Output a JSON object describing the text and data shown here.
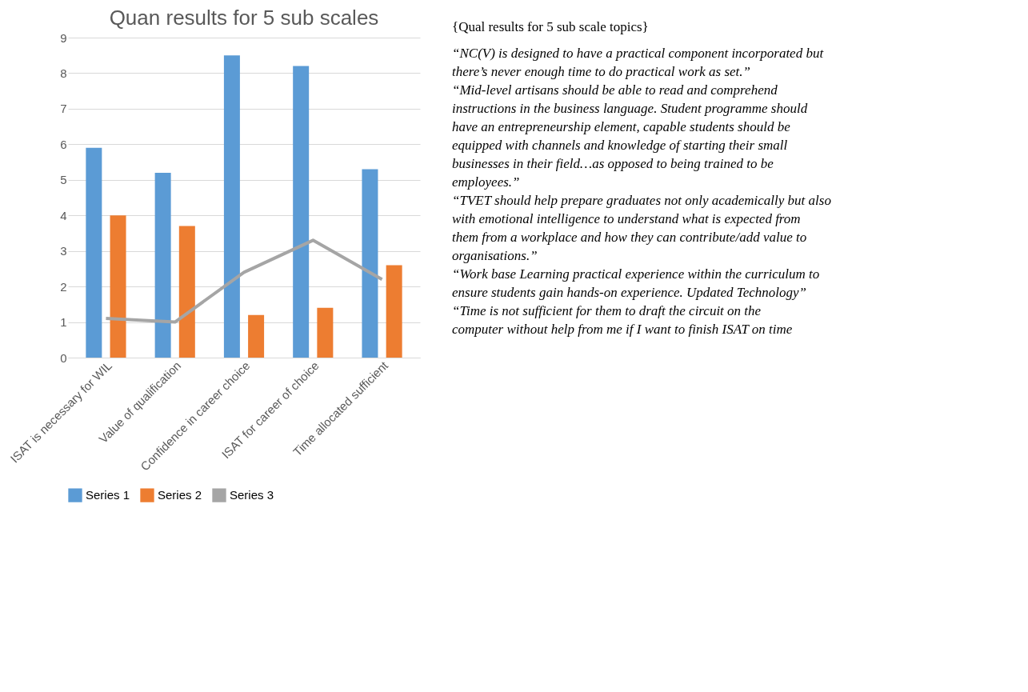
{
  "chart_data": [
    {
      "type": "bar",
      "title": "Quan results for 5 sub scales",
      "categories": [
        "ISAT is necessary for WIL",
        "Value of qualification",
        "Confidence in career choice",
        "ISAT for career of choice",
        "Time allocated sufficient"
      ],
      "series": [
        {
          "name": "Series 1",
          "color": "#5b9bd5",
          "values": [
            5.9,
            5.2,
            8.5,
            8.2,
            5.3
          ]
        },
        {
          "name": "Series 2",
          "color": "#ed7d31",
          "values": [
            4.0,
            3.7,
            1.2,
            1.4,
            2.6
          ]
        },
        {
          "name": "Series 3",
          "type": "line",
          "color": "#a5a5a5",
          "values": [
            1.1,
            1.0,
            2.4,
            3.3,
            2.2
          ]
        }
      ],
      "ylim": [
        0,
        9
      ],
      "yticks": [
        0,
        1,
        2,
        3,
        4,
        5,
        6,
        7,
        8,
        9
      ],
      "grid": "y",
      "legend": "bottom"
    },
    {
      "type": "other",
      "title": "{Qual results for 5 sub scale topics}",
      "annotations": [
        "“NC(V) is designed to have a practical component incorporated but there’s never enough time to do practical work as set.”",
        "“Mid-level artisans should be able to read and comprehend instructions in the business language. Student programme should have an entrepreneurship element, capable students should be equipped with channels and knowledge of starting their small businesses in their field…as opposed to being trained to be employees.”",
        "“TVET should help prepare graduates not only academically but also with emotional intelligence to understand what is expected from them from a workplace and how they can contribute/add value to organisations.”",
        "“Work base Learning practical experience within the curriculum to ensure students gain hands-on experience. Updated Technology”",
        "“Time is not sufficient for them to draft the circuit on the computer without help from me if I want to finish ISAT on time"
      ]
    }
  ]
}
